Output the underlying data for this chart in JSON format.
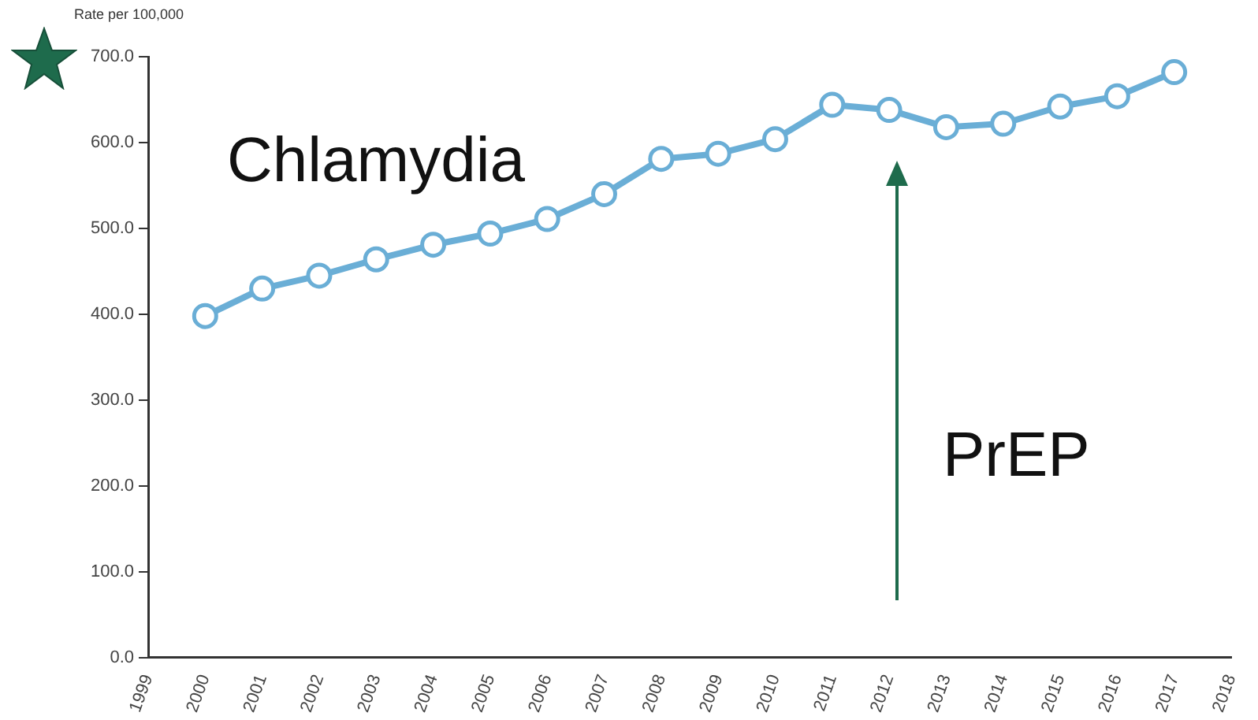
{
  "chart_data": {
    "type": "line",
    "ylabel": "Rate per 100,000",
    "x": [
      2000,
      2001,
      2002,
      2003,
      2004,
      2005,
      2006,
      2007,
      2008,
      2009,
      2010,
      2011,
      2012,
      2013,
      2014,
      2015,
      2016,
      2017
    ],
    "series": [
      {
        "name": "Chlamydia",
        "color": "#6aaed6",
        "values": [
          398,
          430,
          445,
          464,
          481,
          494,
          511,
          540,
          581,
          587,
          604,
          644,
          638,
          618,
          622,
          642,
          654,
          682
        ]
      }
    ],
    "xlim": [
      1999,
      2018
    ],
    "xticks": [
      1999,
      2000,
      2001,
      2002,
      2003,
      2004,
      2005,
      2006,
      2007,
      2008,
      2009,
      2010,
      2011,
      2012,
      2013,
      2014,
      2015,
      2016,
      2017,
      2018
    ],
    "ylim": [
      0,
      700
    ],
    "yticks": [
      {
        "value": 0,
        "label": "0.0"
      },
      {
        "value": 100,
        "label": "100.0"
      },
      {
        "value": 200,
        "label": "200.0"
      },
      {
        "value": 300,
        "label": "300.0"
      },
      {
        "value": 400,
        "label": "400.0"
      },
      {
        "value": 500,
        "label": "500.0"
      },
      {
        "value": 600,
        "label": "600.0"
      },
      {
        "value": 700,
        "label": "700.0"
      }
    ],
    "annotations": [
      "PrEP"
    ],
    "grid": false,
    "legend": false,
    "marker": "circle",
    "line_style": "solid"
  }
}
